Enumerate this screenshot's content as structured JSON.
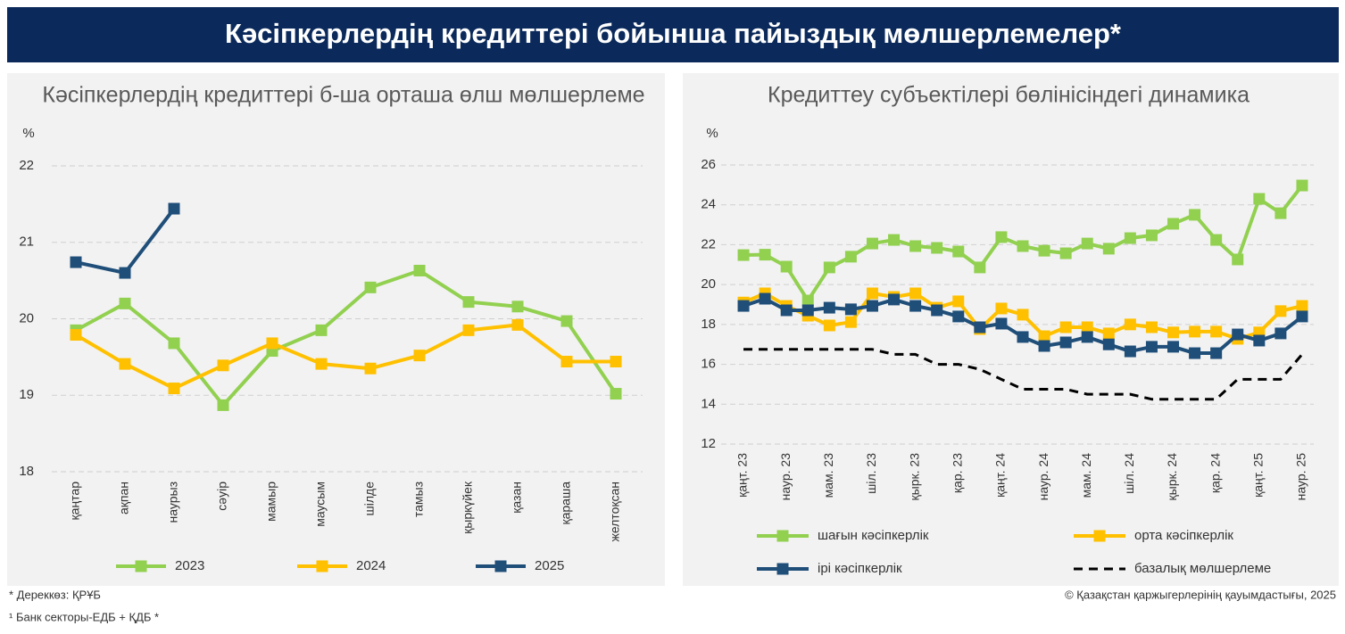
{
  "header": {
    "title": "Кәсіпкерлердің кредиттері бойынша пайыздық мөлшерлемелер*"
  },
  "footer": {
    "source": "* Дереккөз: ҚРҰБ",
    "note": "¹ Банк секторы-ЕДБ + ҚДБ *",
    "copyright": "© Қазақстан қаржыгерлерінің қауымдастығы, 2025"
  },
  "chart_data": [
    {
      "type": "line",
      "title": "Кәсіпкерлердің кредиттері б-ша орташа өлш мөлшерлеме",
      "y_label": "%",
      "categories": [
        "қаңтар",
        "ақпан",
        "наурыз",
        "сәуір",
        "мамыр",
        "маусым",
        "шілде",
        "тамыз",
        "қыркүйек",
        "қазан",
        "қараша",
        "желтоқсан"
      ],
      "ylim": [
        18,
        22
      ],
      "yticks": [
        18,
        19,
        20,
        21,
        22
      ],
      "grid": true,
      "legend": "bottom",
      "series": [
        {
          "name": "2023",
          "color": "#92d050",
          "markers": true,
          "values": [
            19.85,
            20.2,
            19.68,
            18.87,
            19.58,
            19.85,
            20.41,
            20.63,
            20.22,
            20.16,
            19.97,
            19.02
          ]
        },
        {
          "name": "2024",
          "color": "#ffc000",
          "markers": true,
          "values": [
            19.79,
            19.41,
            19.09,
            19.39,
            19.68,
            19.41,
            19.35,
            19.52,
            19.85,
            19.92,
            19.44,
            19.44
          ]
        },
        {
          "name": "2025",
          "color": "#1f4e79",
          "markers": true,
          "values": [
            20.74,
            20.6,
            21.44,
            null,
            null,
            null,
            null,
            null,
            null,
            null,
            null,
            null
          ]
        }
      ]
    },
    {
      "type": "line",
      "title": "Кредиттеу субъектілері бөлінісіндегі динамика",
      "y_label": "%",
      "categories": [
        "қаңт. 23",
        null,
        "наур. 23",
        null,
        "мам. 23",
        null,
        "шіл. 23",
        null,
        "қырк. 23",
        null,
        "қар. 23",
        null,
        "қаңт. 24",
        null,
        "наур. 24",
        null,
        "мам. 24",
        null,
        "шіл. 24",
        null,
        "қырк. 24",
        null,
        "қар. 24",
        null,
        "қаңт. 25",
        null,
        "наур. 25"
      ],
      "ylim": [
        12,
        26
      ],
      "yticks": [
        12,
        14,
        16,
        18,
        20,
        22,
        24,
        26
      ],
      "grid": true,
      "legend": "bottom",
      "series": [
        {
          "name": "шағын кәсіпкерлік",
          "color": "#92d050",
          "markers": true,
          "values": [
            21.48,
            21.5,
            20.9,
            19.2,
            20.86,
            21.4,
            22.06,
            22.24,
            21.93,
            21.84,
            21.66,
            20.86,
            22.38,
            21.93,
            21.7,
            21.57,
            22.06,
            21.8,
            22.33,
            22.47,
            23.05,
            23.5,
            22.24,
            21.26,
            24.3,
            23.58,
            24.97
          ]
        },
        {
          "name": "орта кәсіпкерлік",
          "color": "#ffc000",
          "markers": true,
          "values": [
            19.1,
            19.56,
            18.93,
            18.44,
            17.95,
            18.12,
            19.56,
            19.38,
            19.56,
            18.84,
            19.16,
            17.77,
            18.8,
            18.49,
            17.41,
            17.86,
            17.86,
            17.55,
            18.0,
            17.86,
            17.6,
            17.64,
            17.64,
            17.28,
            17.6,
            18.67,
            18.93
          ]
        },
        {
          "name": "ірі кәсіпкерлік",
          "color": "#1f4e79",
          "markers": true,
          "values": [
            18.93,
            19.29,
            18.71,
            18.71,
            18.84,
            18.76,
            18.93,
            19.25,
            18.93,
            18.71,
            18.4,
            17.86,
            18.04,
            17.37,
            16.92,
            17.1,
            17.37,
            17.0,
            16.65,
            16.88,
            16.88,
            16.56,
            16.56,
            17.5,
            17.19,
            17.55,
            18.4
          ]
        },
        {
          "name": "базалық мөлшерлеме",
          "color": "#000000",
          "markers": false,
          "dash": true,
          "values": [
            16.75,
            16.75,
            16.75,
            16.75,
            16.75,
            16.75,
            16.75,
            16.5,
            16.5,
            16.0,
            16.0,
            15.75,
            15.25,
            14.75,
            14.75,
            14.75,
            14.5,
            14.5,
            14.5,
            14.25,
            14.25,
            14.25,
            14.25,
            15.25,
            15.25,
            15.25,
            16.5
          ]
        }
      ]
    }
  ]
}
